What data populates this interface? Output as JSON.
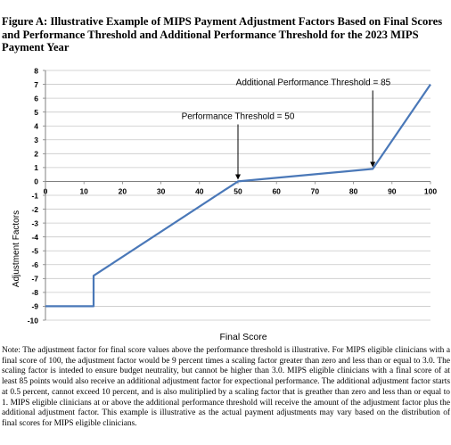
{
  "figure": {
    "title": "Figure A: Illustrative Example of MIPS Payment Adjustment Factors Based on Final Scores and Performance Threshold and Additional Performance Threshold for the 2023 MIPS Payment Year",
    "note_label": "Note:",
    "note_text": " The adjustment factor for final score values above the performance threshold is illustrative.  For MIPS eligible clinicians with a final score of 100, the adjustment factor would be 9 percent times a scaling factor greater than zero and less than or equal to 3.0.  The scaling factor is inteded to ensure budget neutrality, but cannot be higher than 3.0.  MIPS eligible clinicians with a final score of at least 85 points would also receive an additional adjustment factor for expectional performance.  The additional adjustment factor starts at 0.5 percent, cannot exceed 10 percent, and is also mulitiplied by a scaling factor that is greather than zero and less than or equal to 1.  MIPS eligible clinicians at or above the additional performance threshold will receive the amount of the adjustment factor plus the additional adjustment factor.  This example is illustrative as the actual payment adjustments may vary based on the distribution of final scores for MIPS eligible clinicians."
  },
  "colors": {
    "line": "#4a78b8",
    "grid": "#c8c8c8",
    "axis": "#808080",
    "text": "#000000"
  },
  "chart_data": {
    "type": "line",
    "xlabel": "Final Score",
    "ylabel": "Adjustment Factors",
    "xlim": [
      0,
      100
    ],
    "ylim": [
      -10,
      8
    ],
    "x_ticks": [
      0,
      10,
      20,
      30,
      40,
      50,
      60,
      70,
      80,
      90,
      100
    ],
    "y_ticks": [
      8,
      7,
      6,
      5,
      4,
      3,
      2,
      1,
      0,
      -1,
      -2,
      -3,
      -4,
      -5,
      -6,
      -7,
      -8,
      -9,
      -10
    ],
    "grid": "horizontal",
    "series": [
      {
        "x": [
          0,
          12.5,
          12.5,
          50,
          85,
          100
        ],
        "y": [
          -9,
          -9,
          -6.8,
          0,
          0.9,
          7
        ]
      }
    ],
    "annotations": [
      {
        "text": "Performance Threshold = 50",
        "x": 50,
        "y": 0
      },
      {
        "text": "Additional Performance Threshold = 85",
        "x": 85,
        "y": 0.9
      }
    ]
  }
}
